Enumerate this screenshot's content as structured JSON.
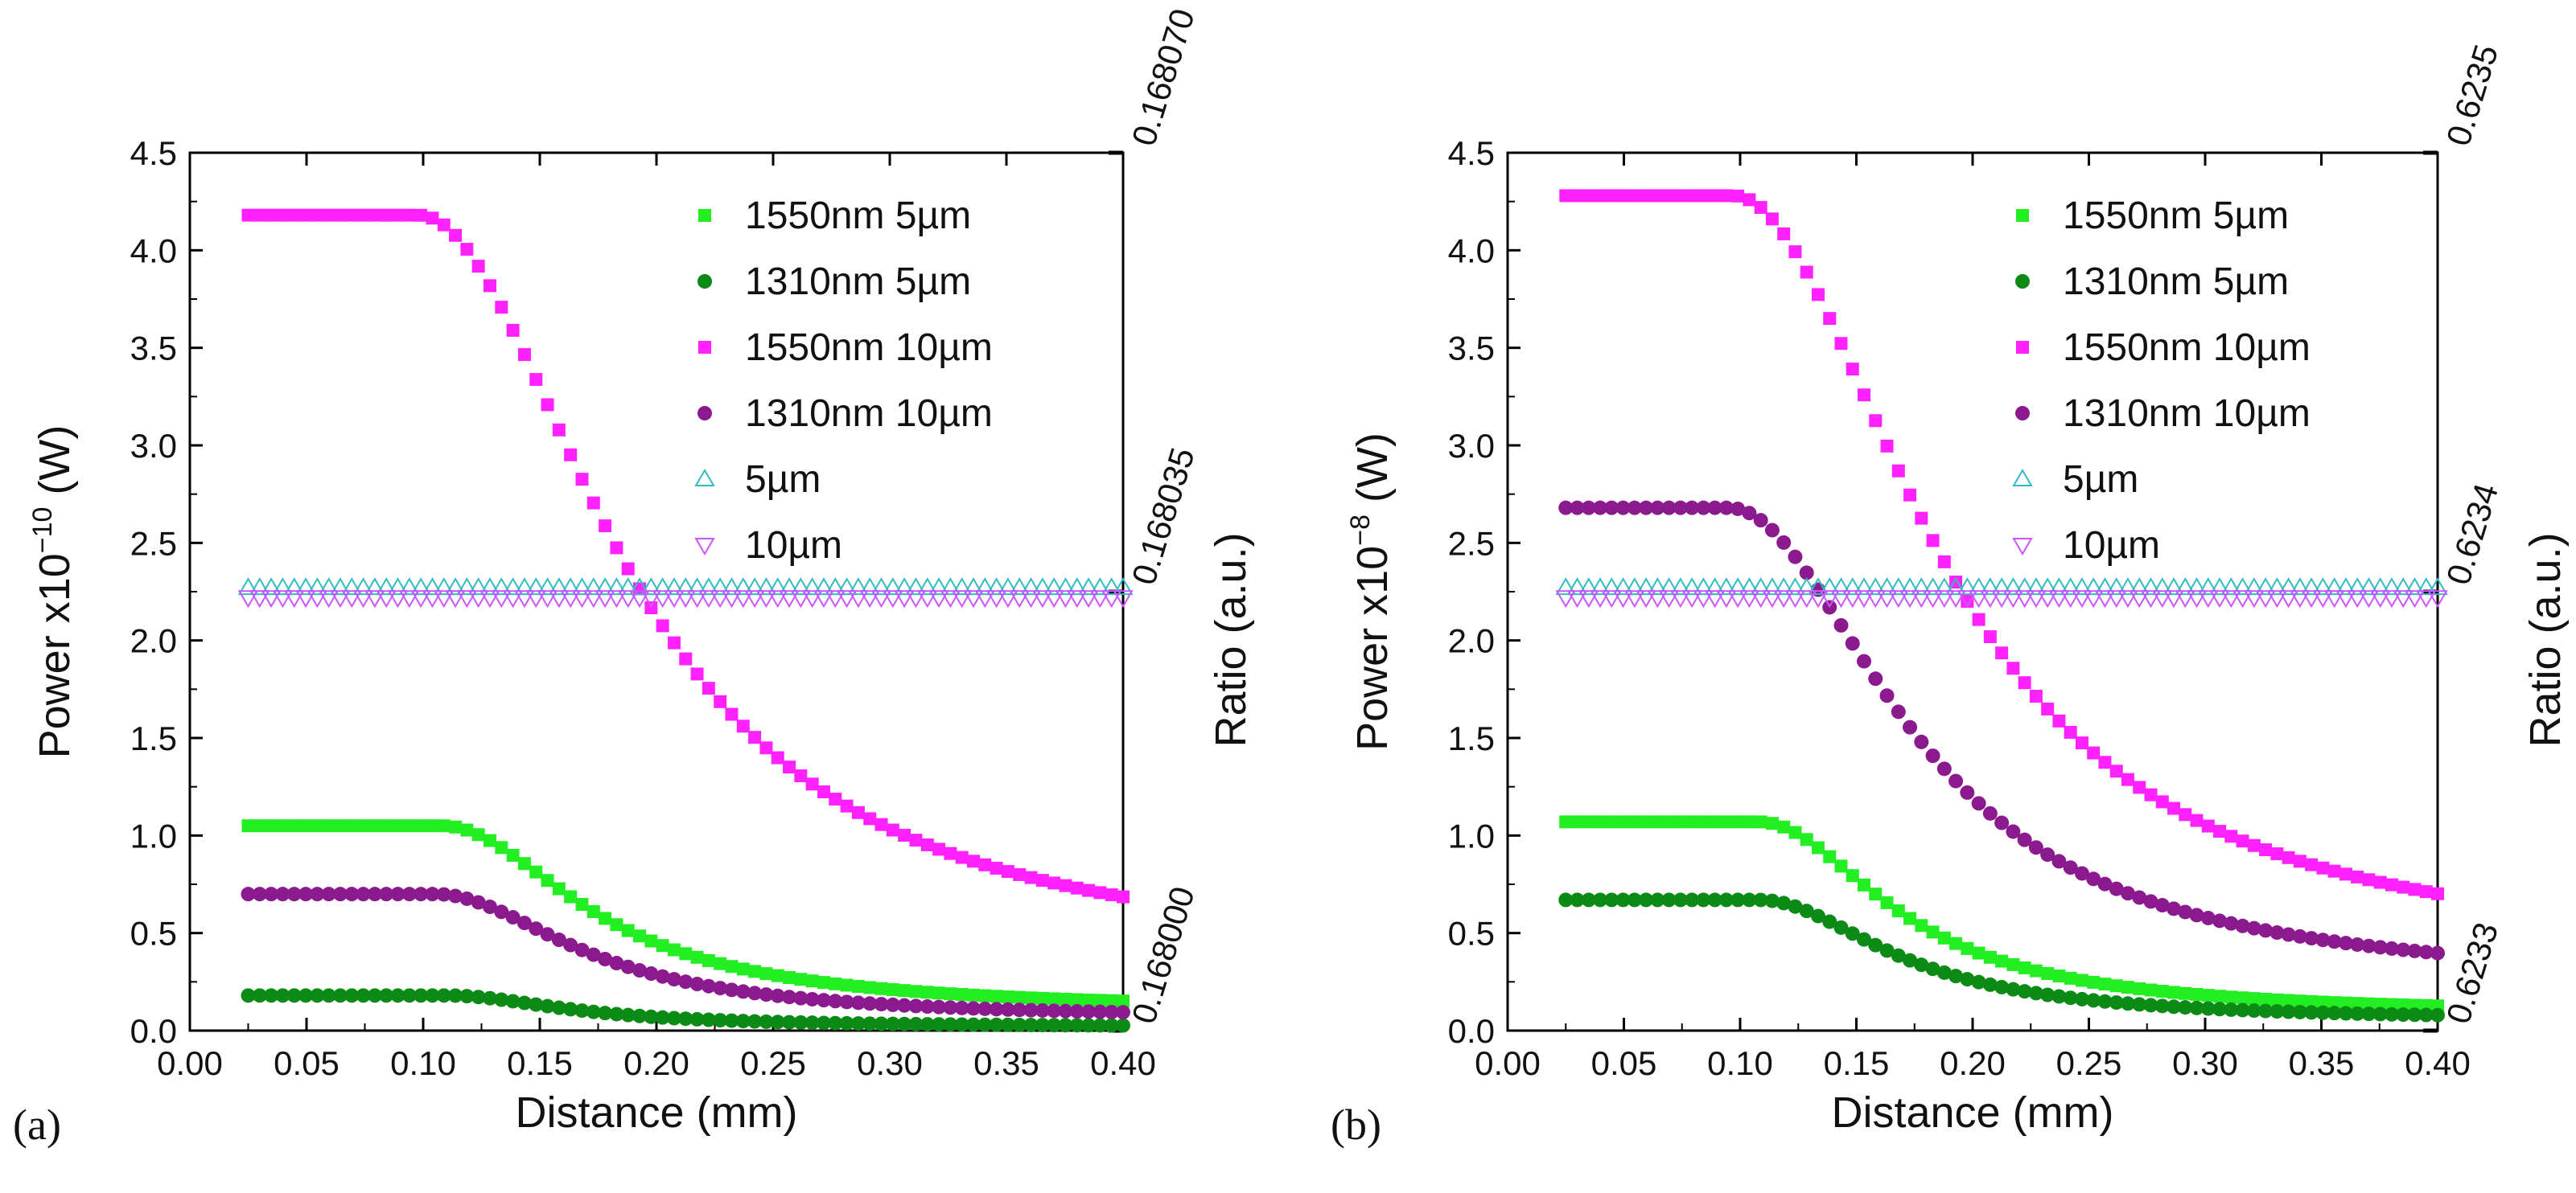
{
  "chart_data": [
    {
      "type": "scatter",
      "panel_label": "(a)",
      "xlabel": "Distance (mm)",
      "ylabel": "Power x10",
      "ylabel_exponent": "−10",
      "ylabel_unit": " (W)",
      "y2label": "Ratio (a.u.)",
      "xlim": [
        0.0,
        0.4
      ],
      "ylim": [
        0.0,
        4.5
      ],
      "y2lim": [
        0.168,
        0.16807
      ],
      "x_ticks": [
        "0.00",
        "0.05",
        "0.10",
        "0.15",
        "0.20",
        "0.25",
        "0.30",
        "0.35",
        "0.40"
      ],
      "y_ticks": [
        "0.0",
        "0.5",
        "1.0",
        "1.5",
        "2.0",
        "2.5",
        "3.0",
        "3.5",
        "4.0",
        "4.5"
      ],
      "y2_ticks": [
        "0.168000",
        "0.168035",
        "0.168070"
      ],
      "legend_position": "top-right",
      "x": {
        "start": 0.025,
        "stop": 0.4,
        "count": 77
      },
      "series": [
        {
          "name": "1550nm 5µm",
          "marker": "square",
          "color": "#22ee22",
          "plateau": 1.05,
          "knee": 0.108,
          "end": 0.1,
          "decay": 0.07
        },
        {
          "name": "1310nm 5µm",
          "marker": "circle",
          "color": "#0b8a15",
          "plateau": 0.18,
          "knee": 0.11,
          "end": 0.02,
          "decay": 0.06
        },
        {
          "name": "1550nm 10µm",
          "marker": "square",
          "color": "#ff22ff",
          "plateau": 4.18,
          "knee": 0.098,
          "end": 0.34,
          "decay": 0.095
        },
        {
          "name": "1310nm 10µm",
          "marker": "circle",
          "color": "#8b1a8e",
          "plateau": 0.7,
          "knee": 0.105,
          "end": 0.06,
          "decay": 0.07
        },
        {
          "name": "5µm",
          "marker": "triangle-up",
          "color": "#31bcc4",
          "y2_constant": 0.168035,
          "offset": 0.02
        },
        {
          "name": "10µm",
          "marker": "triangle-down",
          "color": "#cc55ff",
          "y2_constant": 0.168035,
          "offset": -0.03
        }
      ]
    },
    {
      "type": "scatter",
      "panel_label": "(b)",
      "xlabel": "Distance (mm)",
      "ylabel": "Power x10",
      "ylabel_exponent": "−8",
      "ylabel_unit": " (W)",
      "y2label": "Ratio (a.u.)",
      "xlim": [
        0.0,
        0.4
      ],
      "ylim": [
        0.0,
        4.5
      ],
      "y2lim": [
        0.6233,
        0.6235
      ],
      "x_ticks": [
        "0.00",
        "0.05",
        "0.10",
        "0.15",
        "0.20",
        "0.25",
        "0.30",
        "0.35",
        "0.40"
      ],
      "y_ticks": [
        "0.0",
        "0.5",
        "1.0",
        "1.5",
        "2.0",
        "2.5",
        "3.0",
        "3.5",
        "4.0",
        "4.5"
      ],
      "y2_ticks": [
        "0.6233",
        "0.6234",
        "0.6235"
      ],
      "legend_position": "top-right",
      "x": {
        "start": 0.025,
        "stop": 0.4,
        "count": 77
      },
      "series": [
        {
          "name": "1550nm 5µm",
          "marker": "square",
          "color": "#22ee22",
          "plateau": 1.07,
          "knee": 0.108,
          "end": 0.08,
          "decay": 0.065
        },
        {
          "name": "1310nm 5µm",
          "marker": "circle",
          "color": "#0b8a15",
          "plateau": 0.67,
          "knee": 0.108,
          "end": 0.05,
          "decay": 0.065
        },
        {
          "name": "1550nm 10µm",
          "marker": "square",
          "color": "#ff22ff",
          "plateau": 4.28,
          "knee": 0.097,
          "end": 0.35,
          "decay": 0.095
        },
        {
          "name": "1310nm 10µm",
          "marker": "circle",
          "color": "#8b1a8e",
          "plateau": 2.68,
          "knee": 0.095,
          "end": 0.22,
          "decay": 0.085
        },
        {
          "name": "5µm",
          "marker": "triangle-up",
          "color": "#31bcc4",
          "y2_constant": 0.6234,
          "offset": 0.02
        },
        {
          "name": "10µm",
          "marker": "triangle-down",
          "color": "#cc55ff",
          "y2_constant": 0.6234,
          "offset": -0.03
        }
      ]
    }
  ]
}
